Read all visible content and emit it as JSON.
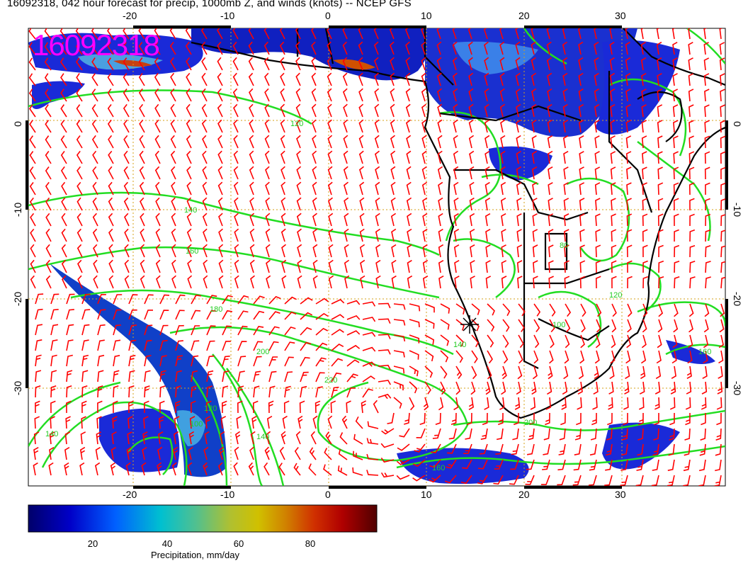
{
  "title": "16092318, 042 hour forecast for precip, 1000mb Z, and winds (knots) -- NCEP GFS",
  "stamp": "16092318",
  "map": {
    "lon_ticks": [
      "-20",
      "-10",
      "0",
      "10",
      "20",
      "30"
    ],
    "lat_ticks": [
      "0",
      "-10",
      "-20",
      "-30"
    ],
    "contour_labels": [
      "80",
      "100",
      "120",
      "140",
      "160",
      "180",
      "200",
      "220",
      "240",
      "160",
      "180",
      "100",
      "120",
      "200",
      "160",
      "140",
      "160"
    ],
    "colors": {
      "wind_barbs": "#ff0000",
      "height_contours": "#00ee00",
      "coastline": "#000000",
      "grid": "#d4a017",
      "stamp": "#ff00ff"
    },
    "marker": "star",
    "icon": "wind-barb-icon"
  },
  "colorbar": {
    "label": "Precipitation, mm/day",
    "ticks": [
      "20",
      "40",
      "60",
      "80"
    ],
    "colors": [
      "#00008b",
      "#0000ff",
      "#0080ff",
      "#00c0c0",
      "#40c080",
      "#a0c040",
      "#c8c000",
      "#d08000",
      "#d03000",
      "#c00000",
      "#800000",
      "#5a0000"
    ]
  }
}
